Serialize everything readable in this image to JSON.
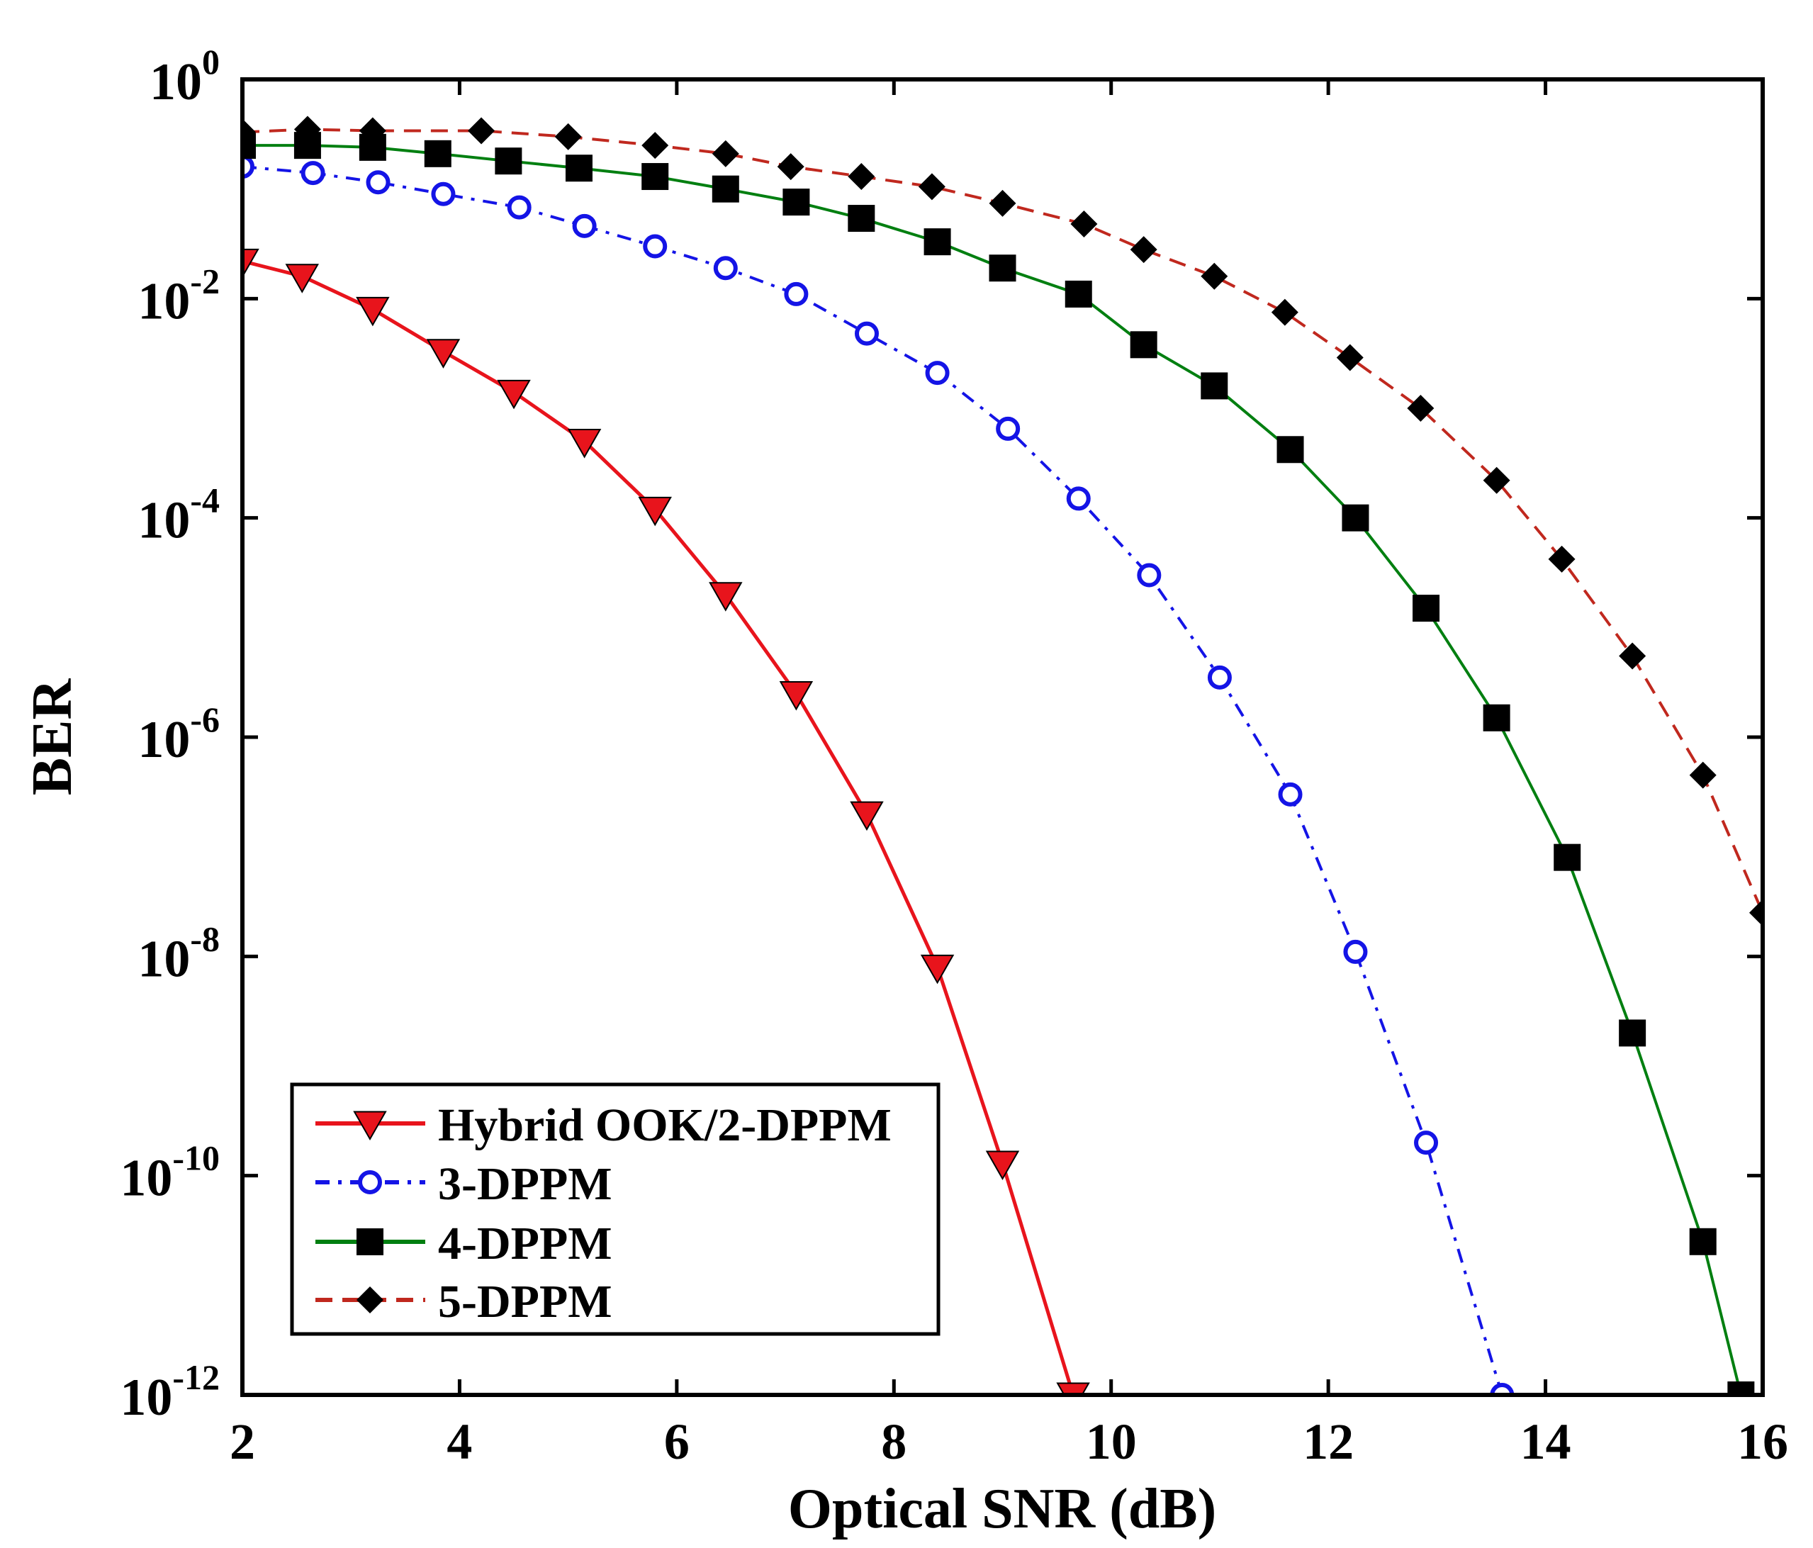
{
  "chart_data": {
    "type": "line",
    "title": "",
    "xlabel": "Optical SNR (dB)",
    "ylabel": "BER",
    "xlim": [
      2,
      16
    ],
    "ylim_exponent": [
      -12,
      0
    ],
    "yscale": "log",
    "grid": false,
    "legend_position": "bottom-left",
    "x_ticks": [
      "2",
      "4",
      "6",
      "8",
      "10",
      "12",
      "14",
      "16"
    ],
    "y_ticks": [
      {
        "base": "10",
        "exp": "0"
      },
      {
        "base": "10",
        "exp": "-2"
      },
      {
        "base": "10",
        "exp": "-4"
      },
      {
        "base": "10",
        "exp": "-6"
      },
      {
        "base": "10",
        "exp": "-8"
      },
      {
        "base": "10",
        "exp": "-10"
      },
      {
        "base": "10",
        "exp": "-12"
      }
    ],
    "series": [
      {
        "name": "Hybrid OOK/2-DPPM",
        "color": "#e8141c",
        "marker": "triangle-down",
        "line": "solid",
        "points": [
          [
            2.0,
            0.022
          ],
          [
            2.55,
            0.016
          ],
          [
            3.2,
            0.008
          ],
          [
            3.85,
            0.0033
          ],
          [
            4.5,
            0.0014
          ],
          [
            5.15,
            0.0005
          ],
          [
            5.8,
            0.00012
          ],
          [
            6.45,
            2e-05
          ],
          [
            7.1,
            2.5e-06
          ],
          [
            7.75,
            2e-07
          ],
          [
            8.4,
            8e-09
          ],
          [
            9.0,
            1.3e-10
          ],
          [
            9.65,
            1e-12
          ]
        ]
      },
      {
        "name": "3-DPPM",
        "color": "#1414e6",
        "marker": "circle",
        "line": "dashdot",
        "points": [
          [
            2.0,
            0.16
          ],
          [
            2.65,
            0.14
          ],
          [
            3.25,
            0.115
          ],
          [
            3.85,
            0.09
          ],
          [
            4.55,
            0.068
          ],
          [
            5.15,
            0.046
          ],
          [
            5.8,
            0.03
          ],
          [
            6.45,
            0.019
          ],
          [
            7.1,
            0.011
          ],
          [
            7.75,
            0.0048
          ],
          [
            8.4,
            0.0021
          ],
          [
            9.05,
            0.00065
          ],
          [
            9.7,
            0.00015
          ],
          [
            10.35,
            3e-05
          ],
          [
            11.0,
            3.5e-06
          ],
          [
            11.65,
            3e-07
          ],
          [
            12.25,
            1.1e-08
          ],
          [
            12.9,
            2e-10
          ],
          [
            13.6,
            1e-12
          ]
        ]
      },
      {
        "name": "4-DPPM",
        "color": "#007f10",
        "marker": "square",
        "line": "solid",
        "points": [
          [
            2.0,
            0.25
          ],
          [
            2.6,
            0.25
          ],
          [
            3.2,
            0.24
          ],
          [
            3.8,
            0.21
          ],
          [
            4.45,
            0.18
          ],
          [
            5.1,
            0.155
          ],
          [
            5.8,
            0.13
          ],
          [
            6.45,
            0.1
          ],
          [
            7.1,
            0.076
          ],
          [
            7.7,
            0.054
          ],
          [
            8.4,
            0.033
          ],
          [
            9.0,
            0.019
          ],
          [
            9.7,
            0.011
          ],
          [
            10.3,
            0.0038
          ],
          [
            10.95,
            0.0016
          ],
          [
            11.65,
            0.00042
          ],
          [
            12.25,
            0.0001
          ],
          [
            12.9,
            1.5e-05
          ],
          [
            13.55,
            1.5e-06
          ],
          [
            14.2,
            8e-08
          ],
          [
            14.8,
            2e-09
          ],
          [
            15.45,
            2.5e-11
          ],
          [
            15.8,
            1e-12
          ]
        ]
      },
      {
        "name": "5-DPPM",
        "color": "#c0281e",
        "marker": "diamond",
        "line": "dashed",
        "points": [
          [
            2.0,
            0.33
          ],
          [
            2.6,
            0.35
          ],
          [
            3.2,
            0.34
          ],
          [
            4.2,
            0.34
          ],
          [
            5.0,
            0.3
          ],
          [
            5.8,
            0.25
          ],
          [
            6.45,
            0.21
          ],
          [
            7.05,
            0.16
          ],
          [
            7.7,
            0.13
          ],
          [
            8.35,
            0.105
          ],
          [
            9.0,
            0.074
          ],
          [
            9.75,
            0.048
          ],
          [
            10.3,
            0.028
          ],
          [
            10.95,
            0.016
          ],
          [
            11.6,
            0.0075
          ],
          [
            12.2,
            0.0029
          ],
          [
            12.85,
            0.001
          ],
          [
            13.55,
            0.00022
          ],
          [
            14.15,
            4.2e-05
          ],
          [
            14.8,
            5.5e-06
          ],
          [
            15.45,
            4.5e-07
          ],
          [
            16.0,
            2.5e-08
          ]
        ]
      }
    ]
  }
}
